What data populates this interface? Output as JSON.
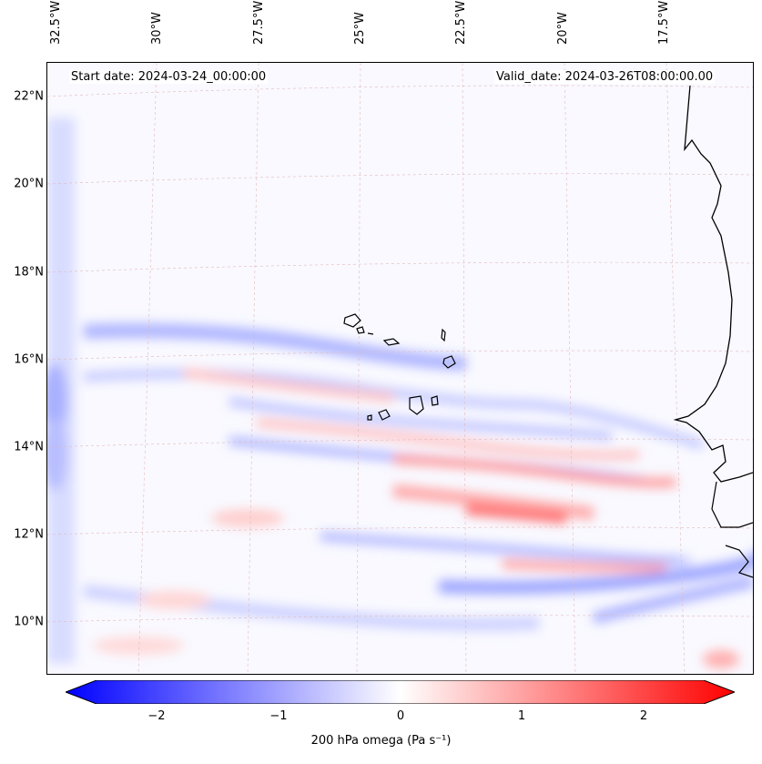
{
  "map": {
    "start_date": "Start date: 2024-03-24_00:00:00",
    "valid_date": "Valid_date: 2024-03-26T08:00:00.00",
    "lon_labels": [
      "32.5°W",
      "30°W",
      "27.5°W",
      "25°W",
      "22.5°W",
      "20°W",
      "17.5°W"
    ],
    "lat_labels": [
      "22°N",
      "20°N",
      "18°N",
      "16°N",
      "14°N",
      "12°N",
      "10°N"
    ],
    "colors": {
      "negative": "#0000ff",
      "zero": "#ffffff",
      "positive": "#ff0000",
      "coast": "#000000"
    }
  },
  "colorbar": {
    "ticks": [
      "−2",
      "−1",
      "0",
      "1",
      "2"
    ],
    "min": -2.75,
    "max": 2.75,
    "label": "200 hPa omega (Pa s⁻¹)"
  }
}
